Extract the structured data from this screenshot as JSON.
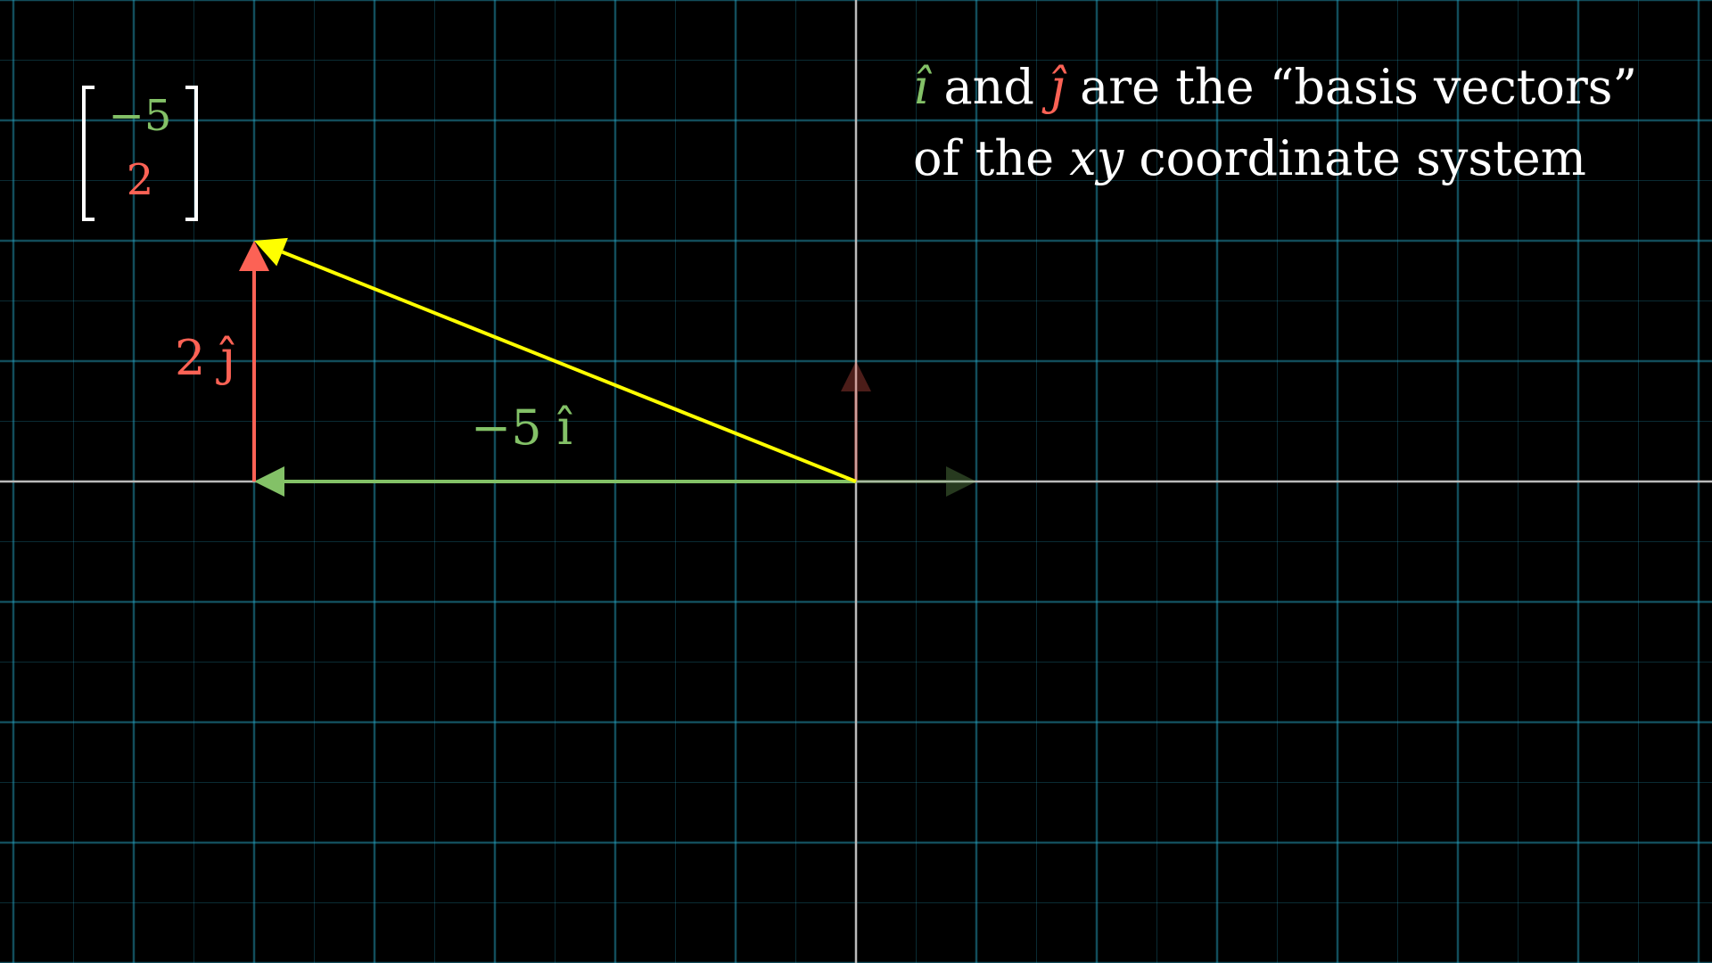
{
  "caption": {
    "line1": {
      "i_symbol": "î",
      "and": " and ",
      "j_symbol": "ĵ",
      "rest": " are the “basis vectors”"
    },
    "line2": {
      "prefix": "of the ",
      "xy": "xy",
      "suffix": " coordinate system"
    }
  },
  "matrix": {
    "entries": [
      "−5",
      "2"
    ]
  },
  "labels": {
    "i_component": "−5 î",
    "j_component": "2 ĵ"
  },
  "colors": {
    "background": "#000000",
    "grid": "#29abca",
    "axis": "#bbbbbb",
    "i_hat": "#83c167",
    "j_hat": "#fc6255",
    "vector": "#ffff00",
    "text": "#ffffff"
  },
  "plane": {
    "x_range": [
      -7,
      7
    ],
    "y_range": [
      -4,
      4
    ],
    "vector": [
      -5,
      2
    ],
    "basis_i": [
      1,
      0
    ],
    "basis_j": [
      0,
      1
    ]
  }
}
